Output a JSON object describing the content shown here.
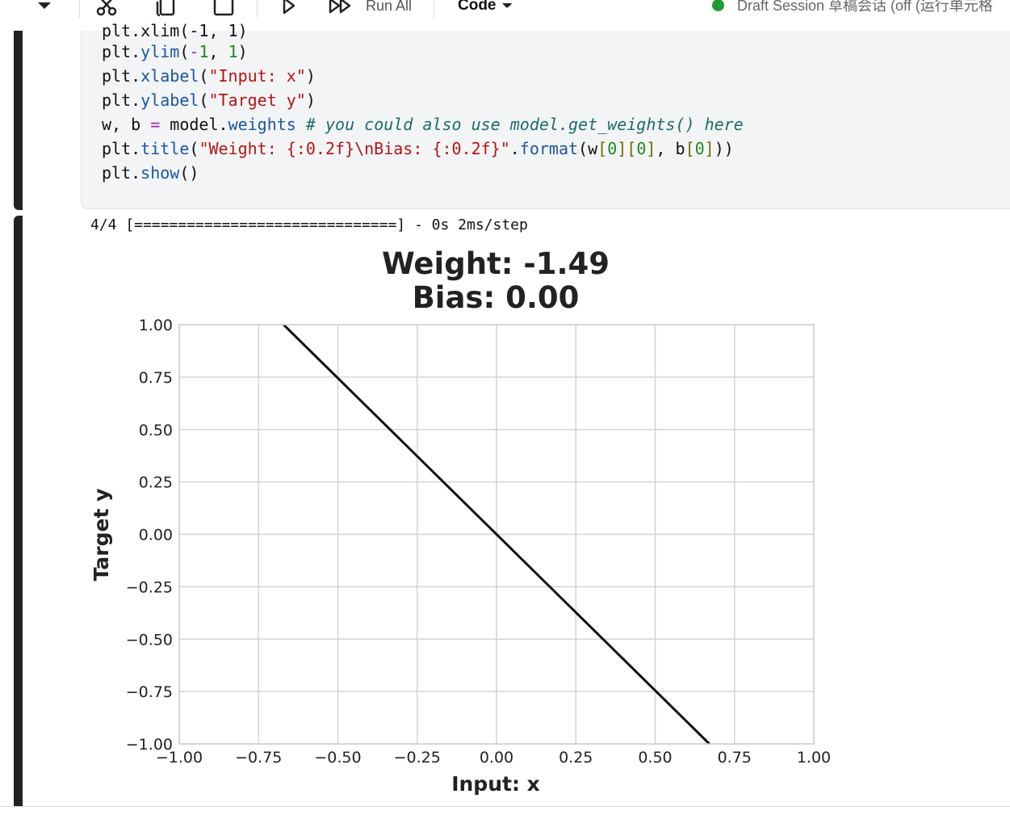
{
  "toolbar": {
    "run_all_label": "Run All",
    "cell_type_label": "Code",
    "session_label": "Draft Session 草稿会话 (off   (运行单元格"
  },
  "code": {
    "line0": "plt.xlim(-1, 1)",
    "ylim": {
      "fn": "ylim",
      "args_open": "(",
      "neg": "-",
      "n1": "1",
      "comma": ", ",
      "n2": "1",
      "close": ")"
    },
    "xlabel": {
      "fn": "xlabel",
      "str": "\"Input: x\""
    },
    "ylabel": {
      "fn": "ylabel",
      "str": "\"Target y\""
    },
    "weights": {
      "lhs": "w, b ",
      "eq": "=",
      "rhs_obj": " model.",
      "rhs_attr": "weights",
      "comment": " # you could also use model.get_weights() here"
    },
    "title": {
      "fn": "title",
      "str": "\"Weight: {:0.2f}\\nBias: {:0.2f}\"",
      "fmt": "format",
      "w": "w",
      "idx0a": "0",
      "idx0b": "0",
      "b": "b",
      "idx0c": "0"
    },
    "show": {
      "fn": "show"
    },
    "plt": "plt"
  },
  "output": {
    "progress": "4/4 [==============================] - 0s 2ms/step"
  },
  "chart_data": {
    "type": "line",
    "title_line1": "Weight: -1.49",
    "title_line2": "Bias: 0.00",
    "xlabel": "Input: x",
    "ylabel": "Target y",
    "xlim": [
      -1,
      1
    ],
    "ylim": [
      -1,
      1
    ],
    "grid": true,
    "x_ticks": [
      "−1.00",
      "−0.75",
      "−0.50",
      "−0.25",
      "0.00",
      "0.25",
      "0.50",
      "0.75",
      "1.00"
    ],
    "y_ticks": [
      "1.00",
      "0.75",
      "0.50",
      "0.25",
      "0.00",
      "−0.25",
      "−0.50",
      "−0.75",
      "−1.00"
    ],
    "series": [
      {
        "x": [
          -0.671,
          0.671
        ],
        "y": [
          1.0,
          -1.0
        ],
        "color": "#111111"
      }
    ]
  }
}
